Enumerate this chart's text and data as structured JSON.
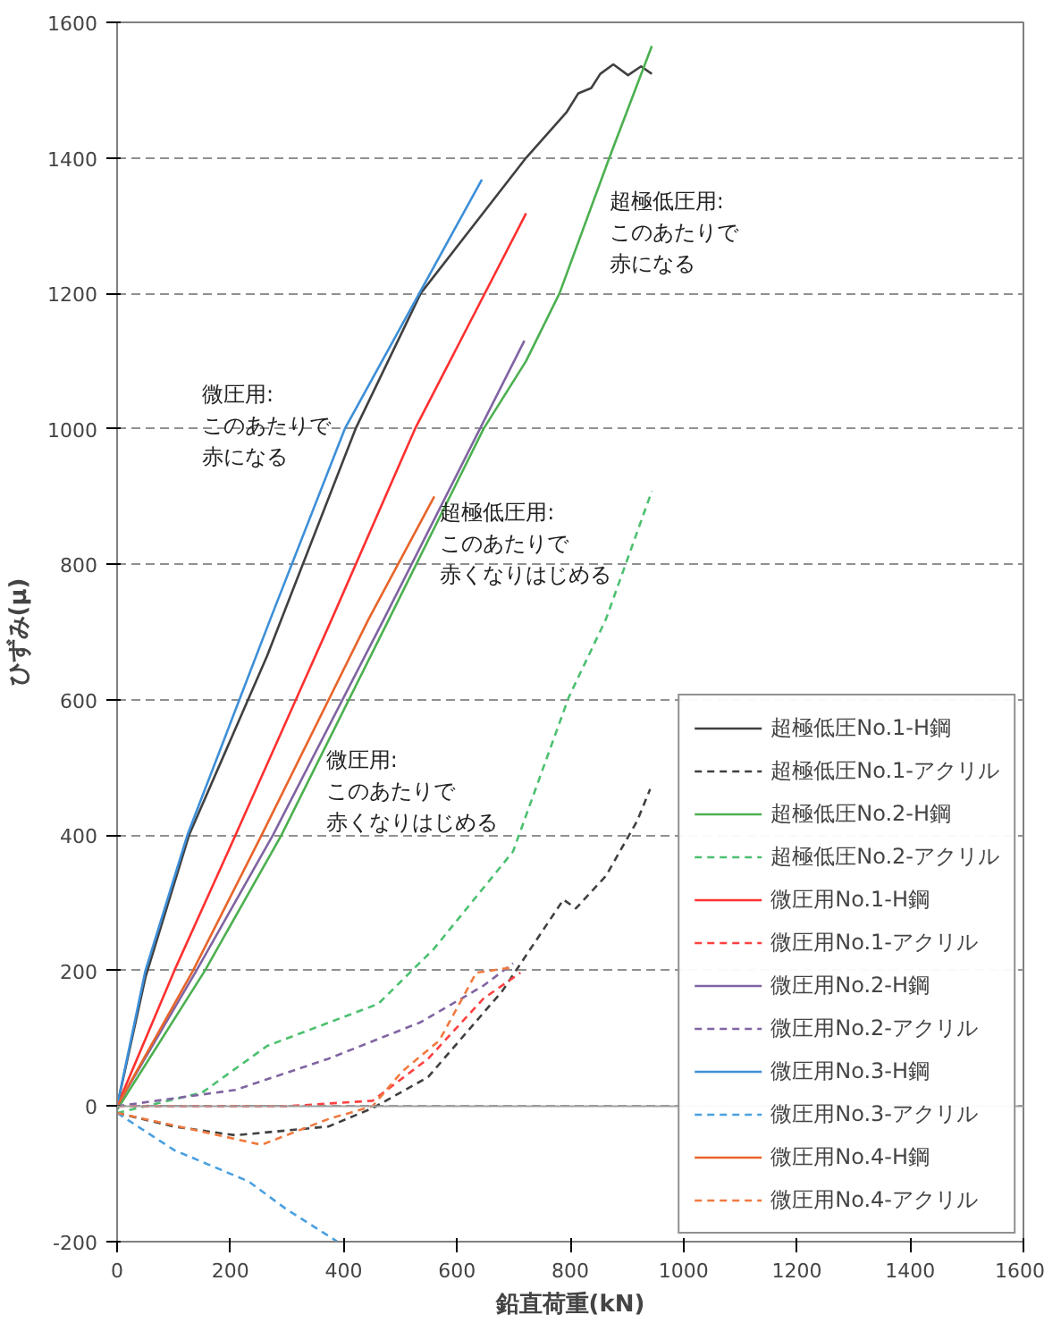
{
  "chart_data": {
    "type": "line",
    "xlabel": "鉛直荷重(kN)",
    "ylabel": "ひずみ(μ)",
    "xlim": [
      0,
      1600
    ],
    "xticks": [
      0,
      200,
      400,
      600,
      800,
      1000,
      1200,
      1400,
      1600
    ],
    "ylim": [
      -200,
      1600
    ],
    "yticks": [
      -200,
      0,
      200,
      400,
      600,
      800,
      1000,
      1200,
      1400,
      1600
    ],
    "grid": "y",
    "legend": "bottom right",
    "marker": "none",
    "ref_lines": [
      {
        "axis": "y",
        "value": 0,
        "color": "#a0a0a0",
        "line_style": "solid"
      }
    ],
    "annotations": [
      "超極低圧用:このあたりで赤になる",
      "微圧用:このあたりで赤になる",
      "超極低圧用:このあたりで赤くなりはじめる",
      "微圧用:このあたりで赤くなりはじめる"
    ],
    "series": [
      {
        "name": "超極低圧No.1-H鋼",
        "color": "#404040",
        "line_style": "solid",
        "x": [
          0,
          50,
          127,
          265,
          421,
          536,
          722,
          794,
          814,
          837,
          853,
          876,
          902,
          925,
          944
        ],
        "values": [
          0,
          190,
          400,
          665,
          1000,
          1200,
          1400,
          1468,
          1495,
          1503,
          1524,
          1538,
          1522,
          1535,
          1524
        ]
      },
      {
        "name": "超極低圧No.1-アクリル",
        "color": "#404040",
        "line_style": "dashed",
        "x": [
          0,
          100,
          209,
          373,
          451,
          549,
          680,
          788,
          810,
          863,
          918,
          941
        ],
        "values": [
          -10,
          -30,
          -43,
          -30,
          -3,
          43,
          170,
          305,
          292,
          340,
          421,
          468
        ]
      },
      {
        "name": "超極低圧No.2-H鋼",
        "color": "#4cb050",
        "line_style": "solid",
        "x": [
          0,
          155,
          290,
          480,
          647,
          722,
          781,
          869,
          944
        ],
        "values": [
          -5,
          200,
          400,
          719,
          1000,
          1100,
          1200,
          1400,
          1565
        ]
      },
      {
        "name": "超極低圧No.2-アクリル",
        "color": "#4cc070",
        "line_style": "dashed",
        "x": [
          0,
          150,
          265,
          461,
          559,
          699,
          797,
          863,
          944
        ],
        "values": [
          -10,
          20,
          89,
          151,
          232,
          376,
          603,
          719,
          908
        ]
      },
      {
        "name": "微圧用No.1-H鋼",
        "color": "#ff3030",
        "line_style": "solid",
        "x": [
          0,
          101,
          209,
          379,
          526,
          722
        ],
        "values": [
          0,
          200,
          400,
          719,
          1000,
          1318
        ]
      },
      {
        "name": "微圧用No.1-アクリル",
        "color": "#ff4040",
        "line_style": "dashed",
        "x": [
          0,
          300,
          451,
          549,
          647,
          712
        ],
        "values": [
          0,
          0,
          8,
          70,
          159,
          197
        ]
      },
      {
        "name": "微圧用No.2-H鋼",
        "color": "#8064a2",
        "line_style": "solid",
        "x": [
          0,
          140,
          275,
          471,
          719
        ],
        "values": [
          0,
          200,
          400,
          719,
          1130
        ]
      },
      {
        "name": "微圧用No.2-アクリル",
        "color": "#8064a2",
        "line_style": "dashed",
        "x": [
          0,
          209,
          373,
          536,
          647,
          699
        ],
        "values": [
          0,
          24,
          70,
          124,
          178,
          211
        ]
      },
      {
        "name": "微圧用No.3-H鋼",
        "color": "#3d8fd8",
        "line_style": "solid",
        "x": [
          0,
          50,
          124,
          271,
          402,
          644
        ],
        "values": [
          0,
          200,
          400,
          720,
          1000,
          1368
        ]
      },
      {
        "name": "微圧用No.3-アクリル",
        "color": "#4aa0e0",
        "line_style": "dashed",
        "x": [
          0,
          101,
          232,
          297,
          389
        ],
        "values": [
          -10,
          -65,
          -111,
          -151,
          -200
        ]
      },
      {
        "name": "微圧用No.4-H鋼",
        "color": "#e8642a",
        "line_style": "solid",
        "x": [
          0,
          134,
          255,
          444,
          560
        ],
        "values": [
          0,
          200,
          400,
          719,
          900
        ]
      },
      {
        "name": "微圧用No.4-アクリル",
        "color": "#f07a40",
        "line_style": "dashed",
        "x": [
          0,
          255,
          373,
          451,
          503,
          569,
          634,
          699
        ],
        "values": [
          -10,
          -57,
          -19,
          0,
          51,
          97,
          197,
          205
        ]
      }
    ]
  }
}
